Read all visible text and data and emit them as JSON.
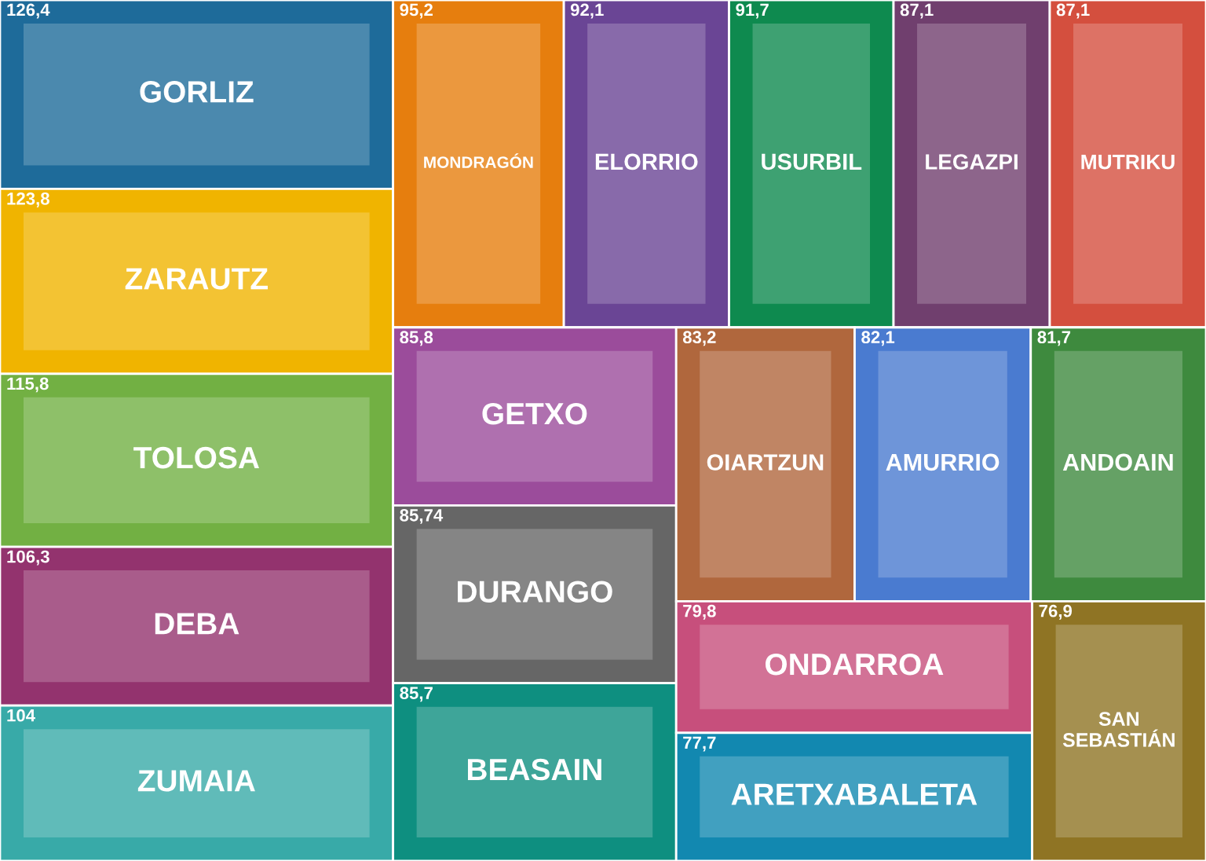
{
  "chart_data": {
    "type": "other",
    "categories": [
      "GORLIZ",
      "ZARAUTZ",
      "TOLOSA",
      "DEBA",
      "ZUMAIA",
      "MONDRAGÓN",
      "ELORRIO",
      "USURBIL",
      "LEGAZPI",
      "MUTRIKU",
      "GETXO",
      "DURANGO",
      "BEASAIN",
      "OIARTZUN",
      "AMURRIO",
      "ANDOAIN",
      "ONDARROA",
      "ARETXABALETA",
      "SAN SEBASTIÁN"
    ],
    "values": [
      126.4,
      123.8,
      115.8,
      106.3,
      104,
      95.2,
      92.1,
      91.7,
      87.1,
      87.1,
      85.8,
      85.74,
      85.7,
      83.2,
      82.1,
      81.7,
      79.8,
      77.7,
      76.9
    ],
    "value_labels": [
      "126,4",
      "123,8",
      "115,8",
      "106,3",
      "104",
      "95,2",
      "92,1",
      "91,7",
      "87,1",
      "87,1",
      "85,8",
      "85,74",
      "85,7",
      "83,2",
      "82,1",
      "81,7",
      "79,8",
      "77,7",
      "76,9"
    ],
    "colors": [
      "#1e6b9a",
      "#f0b400",
      "#72b043",
      "#93336e",
      "#38aaa8",
      "#e67e0e",
      "#6a4595",
      "#0e8a4f",
      "#703f6e",
      "#d44f3e",
      "#9b4c9b",
      "#666666",
      "#0e8f80",
      "#b0673d",
      "#4a7bd0",
      "#3e8a3e",
      "#c74f7c",
      "#1288b0",
      "#8f7424"
    ]
  }
}
